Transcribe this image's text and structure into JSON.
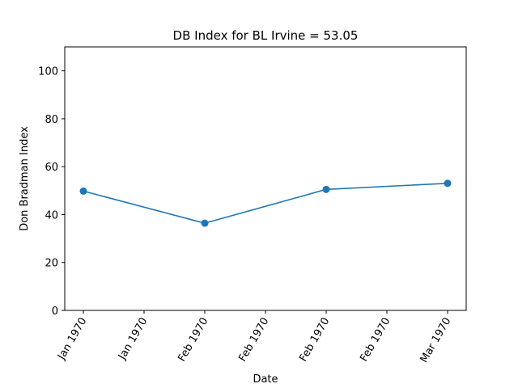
{
  "chart_data": {
    "type": "line",
    "title": "DB Index for BL Irvine = 53.05",
    "xlabel": "Date",
    "ylabel": "Don Bradman Index",
    "x_tick_labels": [
      "Jan 1970",
      "Jan 1970",
      "Feb 1970",
      "Feb 1970",
      "Feb 1970",
      "Feb 1970",
      "Mar 1970"
    ],
    "y_ticks": [
      0,
      20,
      40,
      60,
      80,
      100
    ],
    "ylim": [
      0,
      110
    ],
    "grid": false,
    "legend": "none",
    "series": [
      {
        "color": "#1f77b4",
        "marker": "circle",
        "points": [
          {
            "x": "Jan 1970",
            "y": 49.8
          },
          {
            "x": "Feb 1970",
            "y": 36.4
          },
          {
            "x": "Feb 1970",
            "y": 50.5
          },
          {
            "x": "Mar 1970",
            "y": 53.05
          }
        ]
      }
    ]
  }
}
